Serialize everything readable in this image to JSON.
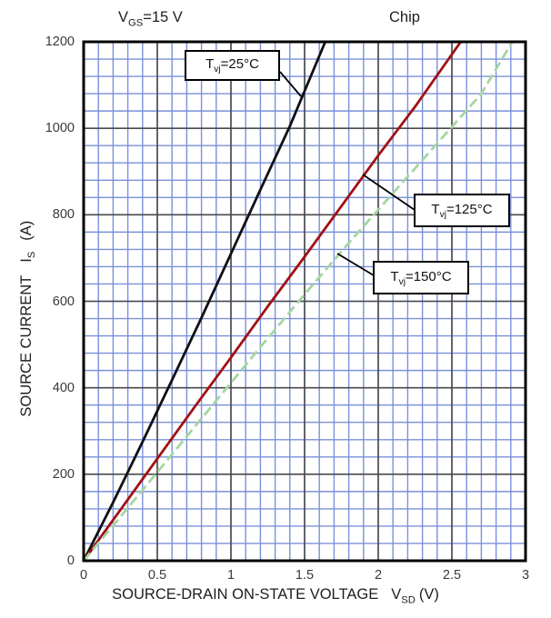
{
  "header": {
    "condition": {
      "base": "V",
      "sub": "GS",
      "rest": "=15 V"
    },
    "chip_label": "Chip"
  },
  "chart_data": {
    "type": "line",
    "title": "",
    "xlabel": {
      "text": "SOURCE-DRAIN ON-STATE VOLTAGE",
      "base": "V",
      "sub": "SD",
      "rest": "(V)"
    },
    "ylabel": {
      "text": "SOURCE CURRENT",
      "base": "I",
      "sub": "S",
      "rest": "(A)"
    },
    "xlim": [
      0,
      3
    ],
    "ylim": [
      0,
      1200
    ],
    "x_major_step": 0.5,
    "x_minor_step": 0.1,
    "y_major_step": 200,
    "y_minor_step": 40,
    "x_ticks": [
      "0",
      "0.5",
      "1",
      "1.5",
      "2",
      "2.5",
      "3"
    ],
    "y_ticks": [
      "0",
      "200",
      "400",
      "600",
      "800",
      "1000",
      "1200"
    ],
    "grid": {
      "on": true,
      "minor_color": "#7a90da",
      "major_color": "#4a4a4a",
      "border_color": "#000000"
    },
    "legend_position": "annotated-callouts",
    "series": [
      {
        "name": "Tvj=25C",
        "label": {
          "base": "T",
          "sub": "vj",
          "rest": "=25°C"
        },
        "color": "#101014",
        "style": "solid",
        "points": [
          [
            0,
            0
          ],
          [
            0.2,
            135
          ],
          [
            0.4,
            275
          ],
          [
            0.6,
            418
          ],
          [
            0.8,
            562
          ],
          [
            1.0,
            710
          ],
          [
            1.2,
            858
          ],
          [
            1.4,
            1005
          ],
          [
            1.64,
            1200
          ]
        ]
      },
      {
        "name": "Tvj=125C",
        "label": {
          "base": "T",
          "sub": "vj",
          "rest": "=125°C"
        },
        "color": "#a11115",
        "style": "solid",
        "points": [
          [
            0,
            0
          ],
          [
            0.25,
            118
          ],
          [
            0.5,
            236
          ],
          [
            0.75,
            354
          ],
          [
            1.0,
            470
          ],
          [
            1.25,
            588
          ],
          [
            1.5,
            703
          ],
          [
            1.75,
            820
          ],
          [
            2.0,
            937
          ],
          [
            2.25,
            1050
          ],
          [
            2.56,
            1200
          ]
        ]
      },
      {
        "name": "Tvj=150C",
        "label": {
          "base": "T",
          "sub": "vj",
          "rest": "=150°C"
        },
        "color": "#a6d6a1",
        "style": "dashed",
        "points": [
          [
            0,
            0
          ],
          [
            0.3,
            122
          ],
          [
            0.6,
            246
          ],
          [
            0.9,
            370
          ],
          [
            1.2,
            494
          ],
          [
            1.5,
            616
          ],
          [
            1.8,
            735
          ],
          [
            2.1,
            850
          ],
          [
            2.4,
            965
          ],
          [
            2.7,
            1080
          ],
          [
            2.91,
            1200
          ]
        ]
      }
    ]
  }
}
